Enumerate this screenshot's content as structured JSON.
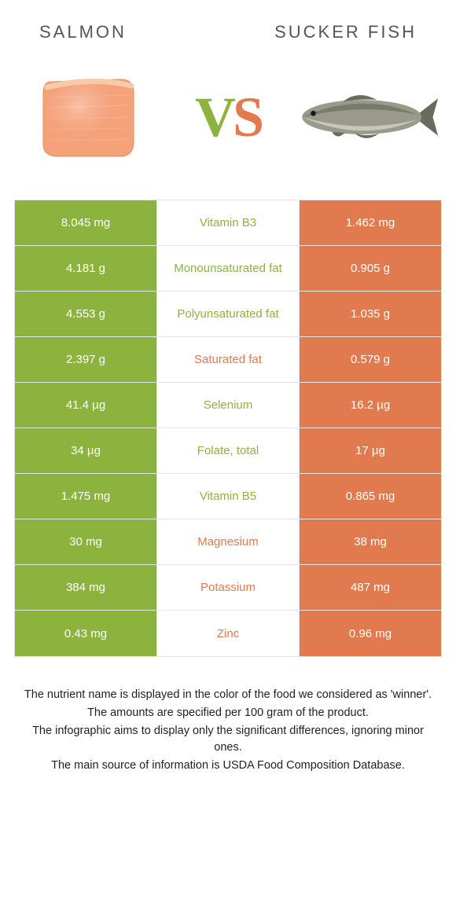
{
  "header": {
    "left_title": "Salmon",
    "right_title": "Sucker fish"
  },
  "hero": {
    "vs_text_v": "V",
    "vs_text_s": "S",
    "left_color": "#8cb33d",
    "right_color": "#e27a4f"
  },
  "colors": {
    "salmon": "#8cb33d",
    "sucker": "#e27a4f",
    "row_border": "#e5e5e5",
    "footer_text": "#222222"
  },
  "table": {
    "rows": [
      {
        "left": "8.045 mg",
        "label": "Vitamin B3",
        "right": "1.462 mg",
        "winner": "left"
      },
      {
        "left": "4.181 g",
        "label": "Monounsaturated fat",
        "right": "0.905 g",
        "winner": "left"
      },
      {
        "left": "4.553 g",
        "label": "Polyunsaturated fat",
        "right": "1.035 g",
        "winner": "left"
      },
      {
        "left": "2.397 g",
        "label": "Saturated fat",
        "right": "0.579 g",
        "winner": "right"
      },
      {
        "left": "41.4 µg",
        "label": "Selenium",
        "right": "16.2 µg",
        "winner": "left"
      },
      {
        "left": "34 µg",
        "label": "Folate, total",
        "right": "17 µg",
        "winner": "left"
      },
      {
        "left": "1.475 mg",
        "label": "Vitamin B5",
        "right": "0.865 mg",
        "winner": "left"
      },
      {
        "left": "30 mg",
        "label": "Magnesium",
        "right": "38 mg",
        "winner": "right"
      },
      {
        "left": "384 mg",
        "label": "Potassium",
        "right": "487 mg",
        "winner": "right"
      },
      {
        "left": "0.43 mg",
        "label": "Zinc",
        "right": "0.96 mg",
        "winner": "right"
      }
    ]
  },
  "footnotes": [
    "The nutrient name is displayed in the color of the food we considered as 'winner'.",
    "The amounts are specified per 100 gram of the product.",
    "The infographic aims to display only the significant differences, ignoring minor ones.",
    "The main source of information is USDA Food Composition Database."
  ]
}
